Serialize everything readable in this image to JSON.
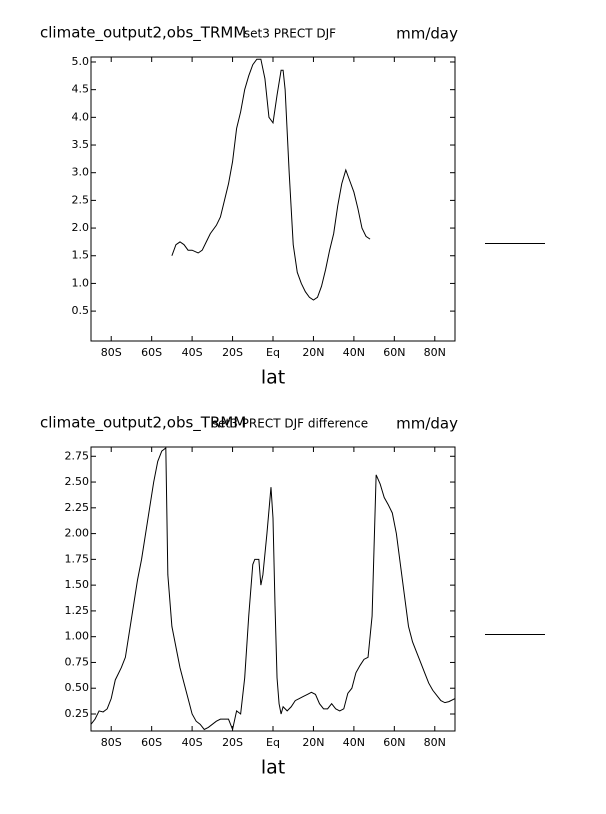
{
  "chart_data": [
    {
      "type": "line",
      "title_left": "climate_output2,obs_TRMM",
      "title": "set3 PRECT DJF",
      "units": "mm/day",
      "xlabel": "lat",
      "xlim": [
        -90,
        90
      ],
      "ylim": [
        -0.04,
        5.09
      ],
      "xticks": [
        {
          "value": -80,
          "label": "80S"
        },
        {
          "value": -60,
          "label": "60S"
        },
        {
          "value": -40,
          "label": "40S"
        },
        {
          "value": -20,
          "label": "20S"
        },
        {
          "value": 0,
          "label": "Eq"
        },
        {
          "value": 20,
          "label": "20N"
        },
        {
          "value": 40,
          "label": "40N"
        },
        {
          "value": 60,
          "label": "60N"
        },
        {
          "value": 80,
          "label": "80N"
        }
      ],
      "yticks": [
        0.5,
        {
          "value": 1.0,
          "label": "1.0"
        },
        1.5,
        {
          "value": 2.0,
          "label": "2.0"
        },
        2.5,
        {
          "value": 3.0,
          "label": "3.0"
        },
        3.5,
        {
          "value": 4.0,
          "label": "4.0"
        },
        4.5,
        {
          "value": 5.0,
          "label": "5.0"
        }
      ],
      "x": [
        -50,
        -48,
        -46,
        -44,
        -42,
        -40,
        -37,
        -35,
        -33,
        -31,
        -28,
        -26,
        -24,
        -22,
        -20,
        -18,
        -16,
        -14,
        -12,
        -10,
        -8,
        -6,
        -4,
        -2,
        0,
        2,
        4,
        5,
        6,
        8,
        10,
        12,
        14,
        16,
        18,
        20,
        22,
        24,
        26,
        28,
        30,
        32,
        34,
        36,
        38,
        40,
        42,
        44,
        46,
        48
      ],
      "series": [
        {
          "color": "#000000",
          "values": [
            1.5,
            1.7,
            1.75,
            1.7,
            1.6,
            1.6,
            1.55,
            1.6,
            1.75,
            1.9,
            2.05,
            2.2,
            2.5,
            2.8,
            3.2,
            3.8,
            4.1,
            4.5,
            4.75,
            4.95,
            5.05,
            5.05,
            4.7,
            4.0,
            3.9,
            4.4,
            4.85,
            4.85,
            4.5,
            3.0,
            1.7,
            1.2,
            1.0,
            0.85,
            0.75,
            0.7,
            0.75,
            0.95,
            1.25,
            1.6,
            1.9,
            2.4,
            2.8,
            3.05,
            2.85,
            2.65,
            2.35,
            2.0,
            1.85,
            1.8
          ]
        }
      ]
    },
    {
      "type": "line",
      "title_left": "climate_output2,obs_TRMM",
      "title": "set3 PRECT DJF difference",
      "units": "mm/day",
      "xlabel": "lat",
      "xlim": [
        -90,
        90
      ],
      "ylim": [
        0.085,
        2.84
      ],
      "xticks": [
        {
          "value": -80,
          "label": "80S"
        },
        {
          "value": -60,
          "label": "60S"
        },
        {
          "value": -40,
          "label": "40S"
        },
        {
          "value": -20,
          "label": "20S"
        },
        {
          "value": 0,
          "label": "Eq"
        },
        {
          "value": 20,
          "label": "20N"
        },
        {
          "value": 40,
          "label": "40N"
        },
        {
          "value": 60,
          "label": "60N"
        },
        {
          "value": 80,
          "label": "80N"
        }
      ],
      "yticks": [
        0.25,
        {
          "value": 0.5,
          "label": "0.50"
        },
        0.75,
        {
          "value": 1.0,
          "label": "1.00"
        },
        1.25,
        {
          "value": 1.5,
          "label": "1.50"
        },
        1.75,
        {
          "value": 2.0,
          "label": "2.00"
        },
        2.25,
        {
          "value": 2.5,
          "label": "2.50"
        },
        2.75
      ],
      "x": [
        -90,
        -88,
        -86,
        -84,
        -82,
        -80,
        -78,
        -75,
        -73,
        -71,
        -69,
        -67,
        -65,
        -63,
        -61,
        -59,
        -57,
        -55,
        -53,
        -52,
        -50,
        -48,
        -46,
        -44,
        -42,
        -40,
        -38,
        -36,
        -34,
        -32,
        -30,
        -28,
        -26,
        -24,
        -22,
        -20,
        -18,
        -16,
        -14,
        -12,
        -10,
        -9,
        -7,
        -6,
        -5,
        -3,
        -1,
        0,
        1,
        2,
        3,
        4,
        5,
        7,
        9,
        11,
        13,
        15,
        17,
        19,
        21,
        23,
        25,
        27,
        29,
        31,
        33,
        35,
        37,
        39,
        41,
        43,
        45,
        47,
        49,
        51,
        53,
        55,
        57,
        59,
        61,
        63,
        65,
        67,
        69,
        71,
        73,
        75,
        77,
        79,
        81,
        83,
        85,
        87,
        90
      ],
      "series": [
        {
          "color": "#000000",
          "values": [
            0.15,
            0.2,
            0.28,
            0.27,
            0.3,
            0.4,
            0.58,
            0.7,
            0.8,
            1.05,
            1.3,
            1.55,
            1.75,
            2.0,
            2.25,
            2.5,
            2.7,
            2.8,
            2.83,
            1.6,
            1.1,
            0.9,
            0.7,
            0.55,
            0.4,
            0.25,
            0.18,
            0.15,
            0.1,
            0.12,
            0.15,
            0.18,
            0.2,
            0.2,
            0.2,
            0.1,
            0.28,
            0.25,
            0.6,
            1.2,
            1.7,
            1.75,
            1.75,
            1.5,
            1.6,
            2.0,
            2.45,
            2.15,
            1.3,
            0.6,
            0.35,
            0.25,
            0.32,
            0.28,
            0.32,
            0.38,
            0.4,
            0.42,
            0.44,
            0.46,
            0.44,
            0.35,
            0.3,
            0.3,
            0.35,
            0.3,
            0.28,
            0.3,
            0.45,
            0.5,
            0.65,
            0.72,
            0.78,
            0.8,
            1.2,
            2.57,
            2.48,
            2.35,
            2.28,
            2.2,
            2.0,
            1.7,
            1.4,
            1.1,
            0.95,
            0.85,
            0.75,
            0.65,
            0.55,
            0.48,
            0.43,
            0.38,
            0.36,
            0.37,
            0.4
          ]
        }
      ]
    }
  ]
}
